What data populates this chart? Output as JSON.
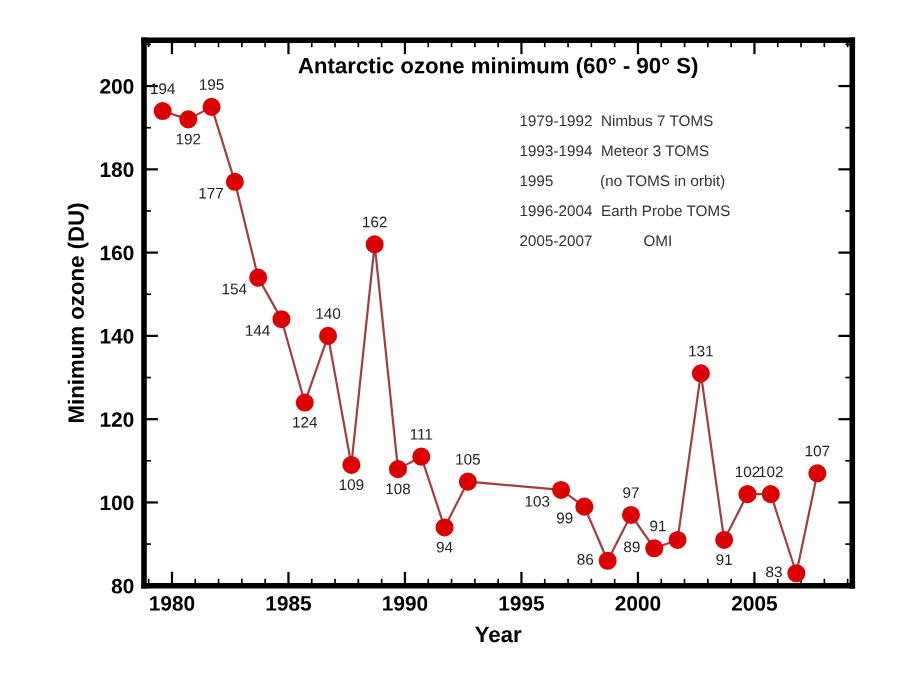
{
  "chart_data": {
    "type": "line",
    "title": "Antarctic ozone minimum (60° - 90° S)",
    "xlabel": "Year",
    "ylabel": "Minimum ozone (DU)",
    "x": [
      1979.6,
      1980.7,
      1981.7,
      1982.7,
      1983.7,
      1984.7,
      1985.7,
      1986.7,
      1987.7,
      1988.7,
      1989.7,
      1990.7,
      1991.7,
      1992.7,
      1996.7,
      1997.7,
      1998.7,
      1999.7,
      2000.7,
      2001.7,
      2002.7,
      2003.7,
      2004.7,
      2005.7,
      2006.8,
      2007.7
    ],
    "series": [
      {
        "color": "#dd0000",
        "values": [
          194,
          192,
          195,
          177,
          154,
          144,
          124,
          140,
          109,
          162,
          108,
          111,
          94,
          105,
          103,
          99,
          86,
          97,
          89,
          91,
          131,
          91,
          102,
          102,
          83,
          107
        ]
      }
    ],
    "xlim": [
      1978.8,
      2009.2
    ],
    "xticks": [
      1980,
      1985,
      1990,
      1995,
      2000,
      2005
    ],
    "ylim": [
      80,
      211
    ],
    "yticks": [
      80,
      100,
      120,
      140,
      160,
      180,
      200
    ],
    "marker": "circle",
    "line_style": "solid",
    "data_labels": true,
    "grid": false,
    "legend": false,
    "annotations": [
      "1979-1992  Nimbus 7 TOMS",
      "1993-1994  Meteor 3 TOMS",
      "1995           (no TOMS in orbit)",
      "1996-2004  Earth Probe TOMS",
      "2005-2007            OMI"
    ]
  }
}
